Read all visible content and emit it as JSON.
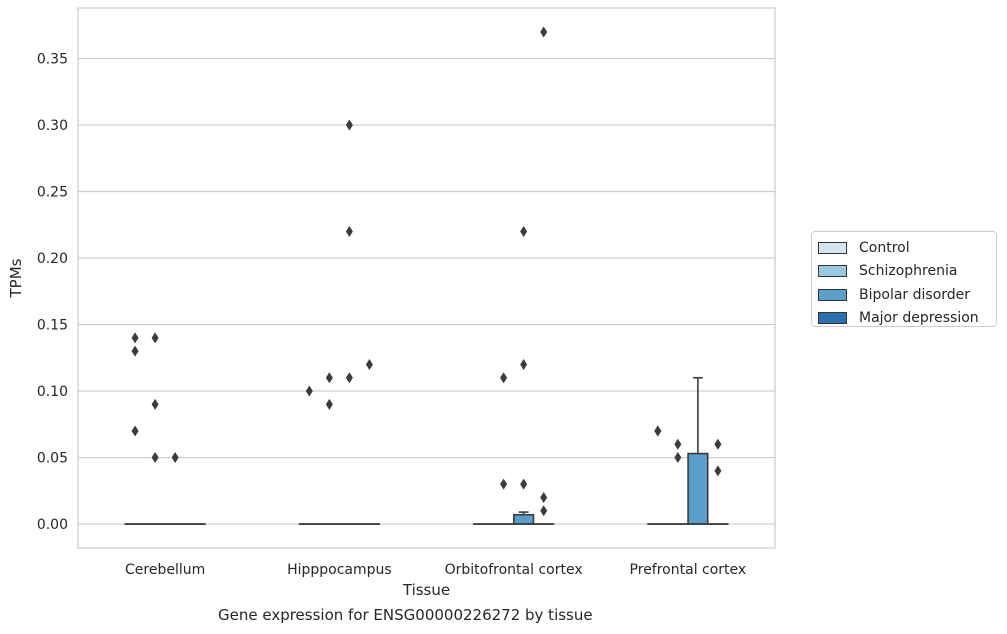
{
  "chart_data": {
    "type": "box",
    "title": "",
    "xlabel": "Tissue",
    "ylabel": "TPMs",
    "caption": "Gene expression for ENSG00000226272 by tissue",
    "ylim": [
      -0.018,
      0.388
    ],
    "yticks": [
      "0.00",
      "0.05",
      "0.10",
      "0.15",
      "0.20",
      "0.25",
      "0.30",
      "0.35"
    ],
    "ytick_values": [
      0,
      0.05,
      0.1,
      0.15,
      0.2,
      0.25,
      0.3,
      0.35
    ],
    "grid": "horizontal",
    "legend_position": "right",
    "categories": [
      "Cerebellum",
      "Hipppocampus",
      "Orbitofrontal cortex",
      "Prefrontal cortex"
    ],
    "series": [
      {
        "name": "Control",
        "color": "#d3e4f3",
        "boxes": [
          {
            "q1": 0,
            "median": 0,
            "q3": 0,
            "whislo": 0,
            "whishi": 0,
            "fliers": [
              0.07,
              0.13,
              0.14
            ]
          },
          {
            "q1": 0,
            "median": 0,
            "q3": 0,
            "whislo": 0,
            "whishi": 0,
            "fliers": [
              0.1
            ]
          },
          {
            "q1": 0,
            "median": 0,
            "q3": 0,
            "whislo": 0,
            "whishi": 0,
            "fliers": []
          },
          {
            "q1": 0,
            "median": 0,
            "q3": 0,
            "whislo": 0,
            "whishi": 0,
            "fliers": [
              0.07,
              0.07
            ]
          }
        ]
      },
      {
        "name": "Schizophrenia",
        "color": "#9ac8e0",
        "boxes": [
          {
            "q1": 0,
            "median": 0,
            "q3": 0,
            "whislo": 0,
            "whishi": 0,
            "fliers": [
              0.05,
              0.09,
              0.14
            ]
          },
          {
            "q1": 0,
            "median": 0,
            "q3": 0,
            "whislo": 0,
            "whishi": 0,
            "fliers": [
              0.09,
              0.11
            ]
          },
          {
            "q1": 0,
            "median": 0,
            "q3": 0,
            "whislo": 0,
            "whishi": 0,
            "fliers": [
              0.03,
              0.11
            ]
          },
          {
            "q1": 0,
            "median": 0,
            "q3": 0,
            "whislo": 0,
            "whishi": 0,
            "fliers": [
              0.05,
              0.06
            ]
          }
        ]
      },
      {
        "name": "Bipolar disorder",
        "color": "#5a9ec9",
        "boxes": [
          {
            "q1": 0,
            "median": 0,
            "q3": 0,
            "whislo": 0,
            "whishi": 0,
            "fliers": [
              0.05
            ]
          },
          {
            "q1": 0,
            "median": 0,
            "q3": 0,
            "whislo": 0,
            "whishi": 0,
            "fliers": [
              0.11,
              0.22,
              0.3
            ]
          },
          {
            "q1": 0,
            "median": 0,
            "q3": 0.007,
            "whislo": 0,
            "whishi": 0.009,
            "fliers": [
              0.03,
              0.12,
              0.22
            ]
          },
          {
            "q1": 0,
            "median": 0,
            "q3": 0.053,
            "whislo": 0,
            "whishi": 0.11,
            "fliers": []
          }
        ]
      },
      {
        "name": "Major depression",
        "color": "#2e6fae",
        "boxes": [
          {
            "q1": 0,
            "median": 0,
            "q3": 0,
            "whislo": 0,
            "whishi": 0,
            "fliers": []
          },
          {
            "q1": 0,
            "median": 0,
            "q3": 0,
            "whislo": 0,
            "whishi": 0,
            "fliers": [
              0.12
            ]
          },
          {
            "q1": 0,
            "median": 0,
            "q3": 0,
            "whislo": 0,
            "whishi": 0,
            "fliers": [
              0.01,
              0.02,
              0.37
            ]
          },
          {
            "q1": 0,
            "median": 0,
            "q3": 0,
            "whislo": 0,
            "whishi": 0,
            "fliers": [
              0.04,
              0.06
            ]
          }
        ]
      }
    ]
  }
}
